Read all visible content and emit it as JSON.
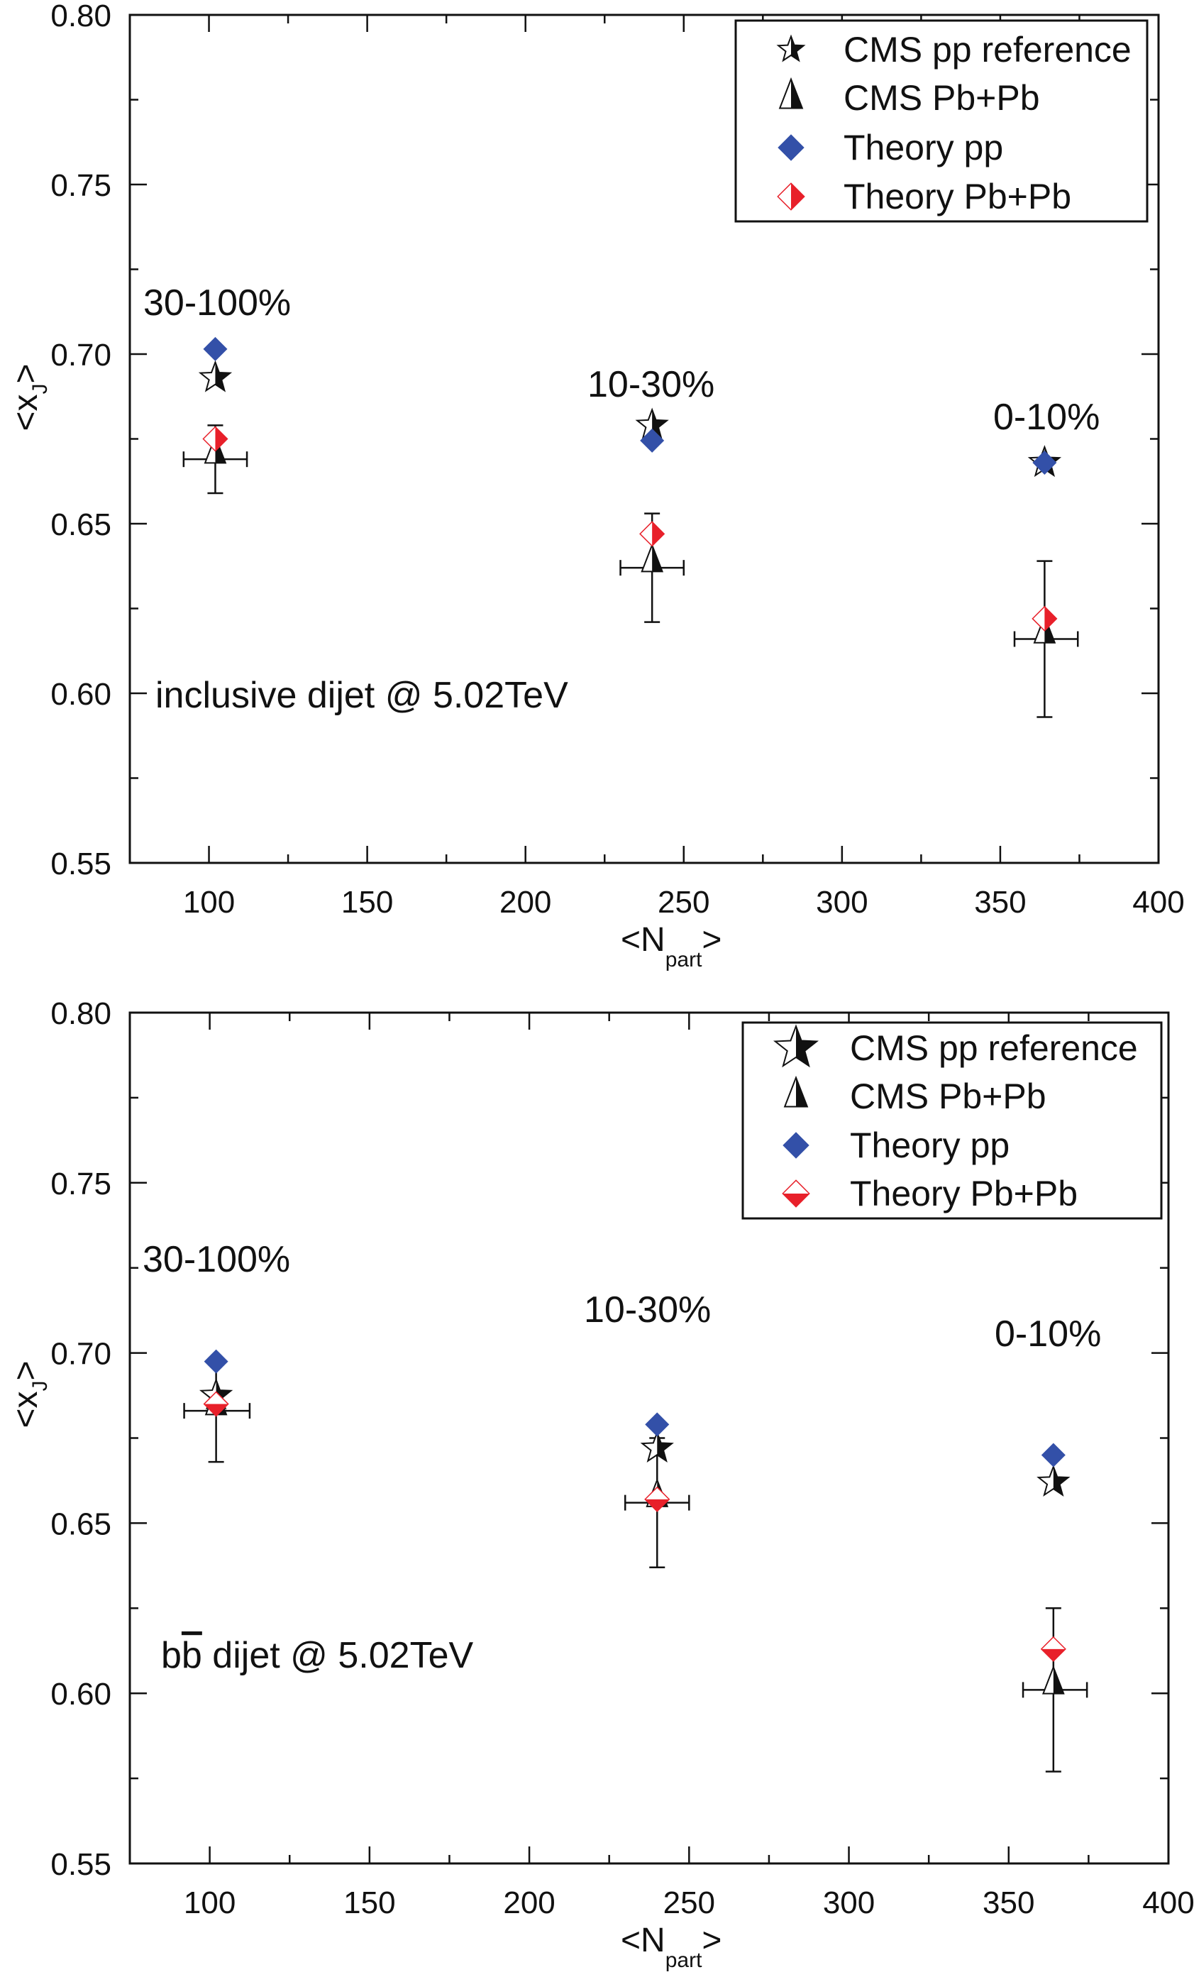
{
  "colors": {
    "theory_pp": "#3350a8",
    "theory_pbpb": "#e8202a",
    "cms": "#111111"
  },
  "chart_data": [
    {
      "type": "scatter",
      "title": "",
      "annotation": "inclusive dijet @ 5.02TeV",
      "xlabel": "<N_part>",
      "xlabel_main": "<N",
      "xlabel_sub": "part",
      "xlabel_close": ">",
      "ylabel": "<x_J>",
      "xlim": [
        75,
        400
      ],
      "ylim": [
        0.55,
        0.8
      ],
      "xticks": [
        100,
        150,
        200,
        250,
        300,
        350,
        400
      ],
      "yticks": [
        0.55,
        0.6,
        0.65,
        0.7,
        0.75,
        0.8
      ],
      "ytick_labels": [
        "0.55",
        "0.60",
        "0.65",
        "0.70",
        "0.75",
        "0.80"
      ],
      "xtick_labels": [
        "100",
        "150",
        "200",
        "250",
        "300",
        "350",
        "400"
      ],
      "grid": false,
      "legend_position": "top-right",
      "legend": [
        "CMS pp reference",
        "CMS Pb+Pb",
        "Theory pp",
        "Theory Pb+Pb"
      ],
      "centrality_labels": [
        {
          "text": "30-100%",
          "x": 102
        },
        {
          "text": "10-30%",
          "x": 240
        },
        {
          "text": "0-10%",
          "x": 364
        }
      ],
      "series": [
        {
          "name": "CMS pp reference",
          "marker": "half-star",
          "points": [
            {
              "x": 102,
              "y": 0.693
            },
            {
              "x": 240,
              "y": 0.679
            },
            {
              "x": 364,
              "y": 0.668
            }
          ]
        },
        {
          "name": "CMS Pb+Pb",
          "marker": "half-triangle",
          "points": [
            {
              "x": 102,
              "y": 0.669,
              "xerr": [
                92,
                112
              ],
              "yerr": [
                0.659,
                0.679
              ]
            },
            {
              "x": 240,
              "y": 0.637,
              "xerr": [
                230,
                250
              ],
              "yerr": [
                0.621,
                0.653
              ]
            },
            {
              "x": 364,
              "y": 0.616,
              "xerr": [
                354.5,
                374.5
              ],
              "yerr": [
                0.593,
                0.639
              ]
            }
          ]
        },
        {
          "name": "Theory pp",
          "marker": "diamond",
          "points": [
            {
              "x": 102,
              "y": 0.7015
            },
            {
              "x": 240,
              "y": 0.6745
            },
            {
              "x": 364,
              "y": 0.668
            }
          ]
        },
        {
          "name": "Theory Pb+Pb",
          "marker": "half-diamond-right",
          "points": [
            {
              "x": 102,
              "y": 0.675
            },
            {
              "x": 240,
              "y": 0.647
            },
            {
              "x": 364,
              "y": 0.622
            }
          ]
        }
      ]
    },
    {
      "type": "scatter",
      "title": "",
      "annotation": "bb̄ dijet @ 5.02TeV",
      "annotation_prefix": "b",
      "annotation_bar": "b",
      "annotation_rest": " dijet @ 5.02TeV",
      "xlabel": "<N_part>",
      "xlabel_main": "<N",
      "xlabel_sub": "part",
      "xlabel_close": ">",
      "ylabel": "<x_J>",
      "xlim": [
        75,
        400
      ],
      "ylim": [
        0.55,
        0.8
      ],
      "xticks": [
        100,
        150,
        200,
        250,
        300,
        350,
        400
      ],
      "yticks": [
        0.55,
        0.6,
        0.65,
        0.7,
        0.75,
        0.8
      ],
      "ytick_labels": [
        "0.55",
        "0.60",
        "0.65",
        "0.70",
        "0.75",
        "0.80"
      ],
      "xtick_labels": [
        "100",
        "150",
        "200",
        "250",
        "300",
        "350",
        "400"
      ],
      "grid": false,
      "legend_position": "top-right",
      "legend": [
        "CMS pp reference",
        "CMS Pb+Pb",
        "Theory pp",
        "Theory Pb+Pb"
      ],
      "centrality_labels": [
        {
          "text": "30-100%",
          "x": 102
        },
        {
          "text": "10-30%",
          "x": 240
        },
        {
          "text": "0-10%",
          "x": 364
        }
      ],
      "series": [
        {
          "name": "CMS pp reference",
          "marker": "half-star",
          "points": [
            {
              "x": 102,
              "y": 0.6875
            },
            {
              "x": 240,
              "y": 0.672
            },
            {
              "x": 364,
              "y": 0.662
            }
          ]
        },
        {
          "name": "CMS Pb+Pb",
          "marker": "half-triangle",
          "points": [
            {
              "x": 102,
              "y": 0.683,
              "xerr": [
                92,
                112.5
              ],
              "yerr": [
                0.668,
                0.698
              ]
            },
            {
              "x": 240,
              "y": 0.656,
              "xerr": [
                230,
                250
              ],
              "yerr": [
                0.637,
                0.675
              ]
            },
            {
              "x": 364,
              "y": 0.601,
              "xerr": [
                354.5,
                374.5
              ],
              "yerr": [
                0.577,
                0.625
              ]
            }
          ]
        },
        {
          "name": "Theory pp",
          "marker": "diamond",
          "points": [
            {
              "x": 102,
              "y": 0.6975
            },
            {
              "x": 240,
              "y": 0.679
            },
            {
              "x": 364,
              "y": 0.67
            }
          ]
        },
        {
          "name": "Theory Pb+Pb",
          "marker": "half-diamond-bottom",
          "points": [
            {
              "x": 102,
              "y": 0.685
            },
            {
              "x": 240,
              "y": 0.657
            },
            {
              "x": 364,
              "y": 0.613
            }
          ]
        }
      ]
    }
  ]
}
